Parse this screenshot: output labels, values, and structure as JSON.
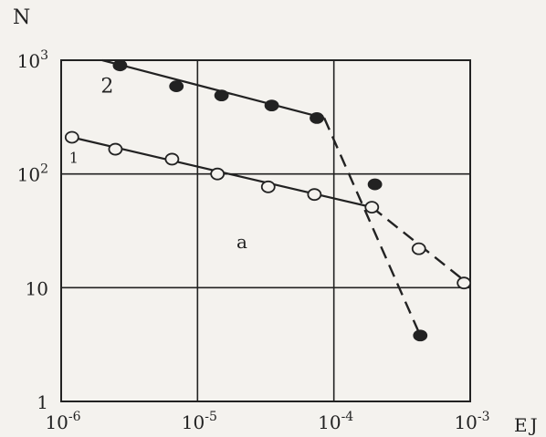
{
  "chart_data": {
    "type": "scatter",
    "xscale": "log",
    "yscale": "log",
    "xlim": [
      1e-06,
      0.001
    ],
    "ylim": [
      1,
      1000
    ],
    "grid": true,
    "xlabel": "EJ",
    "ylabel": "N",
    "x_ticks": [
      {
        "value": 1e-06,
        "base": "10",
        "exp": "-6"
      },
      {
        "value": 1e-05,
        "base": "10",
        "exp": "-5"
      },
      {
        "value": 0.0001,
        "base": "10",
        "exp": "-4"
      },
      {
        "value": 0.001,
        "base": "10",
        "exp": "-3"
      }
    ],
    "y_ticks": [
      {
        "value": 1,
        "base": "1",
        "exp": ""
      },
      {
        "value": 10,
        "base": "10",
        "exp": ""
      },
      {
        "value": 100,
        "base": "10",
        "exp": "2"
      },
      {
        "value": 1000,
        "base": "10",
        "exp": "3"
      }
    ],
    "annotation": "a",
    "series": [
      {
        "name": "1",
        "marker": "open-circle",
        "color": "#222222",
        "points": [
          {
            "x": 1.2e-06,
            "y": 210
          },
          {
            "x": 2.5e-06,
            "y": 165
          },
          {
            "x": 6.5e-06,
            "y": 135
          },
          {
            "x": 1.4e-05,
            "y": 100
          },
          {
            "x": 3.3e-05,
            "y": 77
          },
          {
            "x": 7.2e-05,
            "y": 66
          },
          {
            "x": 0.00019,
            "y": 51
          },
          {
            "x": 0.00042,
            "y": 22
          },
          {
            "x": 0.0009,
            "y": 11
          }
        ],
        "solid_fit": {
          "from": [
            1.2e-06,
            210
          ],
          "to": [
            0.00019,
            51
          ]
        },
        "dashed_fit": {
          "from": [
            0.00019,
            51
          ],
          "to": [
            0.001,
            10.5
          ]
        }
      },
      {
        "name": "2",
        "marker": "filled-circle",
        "color": "#222222",
        "points": [
          {
            "x": 2.7e-06,
            "y": 900
          },
          {
            "x": 7e-06,
            "y": 590
          },
          {
            "x": 1.5e-05,
            "y": 490
          },
          {
            "x": 3.5e-05,
            "y": 400
          },
          {
            "x": 7.5e-05,
            "y": 310
          },
          {
            "x": 0.0002,
            "y": 81
          },
          {
            "x": 0.00043,
            "y": 3.8
          }
        ],
        "solid_fit": {
          "from": [
            2e-06,
            1000
          ],
          "to": [
            8.5e-05,
            310
          ]
        },
        "dashed_fit": {
          "from": [
            8.5e-05,
            310
          ],
          "to": [
            0.00043,
            3.8
          ]
        }
      }
    ]
  }
}
